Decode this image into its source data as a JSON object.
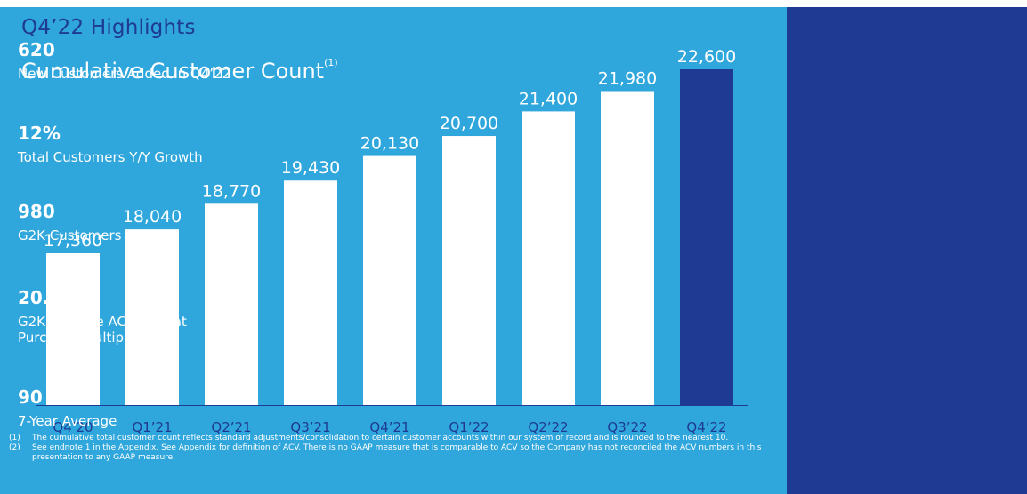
{
  "header": {
    "title": "Q4’22 Highlights",
    "chart_title": "Cumulative Customer Count",
    "chart_title_note": "(1)"
  },
  "colors": {
    "panel_bg": "#2fa6dc",
    "side_bg": "#1f3a93",
    "bar": "#ffffff",
    "highlight_bar": "#1f3a93",
    "title": "#1f3a93"
  },
  "chart_data": {
    "type": "bar",
    "title": "Cumulative Customer Count",
    "categories": [
      "Q4’20",
      "Q1’21",
      "Q2’21",
      "Q3’21",
      "Q4’21",
      "Q1’22",
      "Q2’22",
      "Q3’22",
      "Q4’22"
    ],
    "values": [
      17360,
      18040,
      18770,
      19430,
      20130,
      20700,
      21400,
      21980,
      22600
    ],
    "value_labels": [
      "17,360",
      "18,040",
      "18,770",
      "19,430",
      "20,130",
      "20,700",
      "21,400",
      "21,980",
      "22,600"
    ],
    "highlight_index": 8,
    "xlabel": "",
    "ylabel": "",
    "grid": false,
    "legend": "none"
  },
  "footnotes": [
    {
      "num": "(1)",
      "text": "The cumulative total customer count reflects standard adjustments/consolidation to certain customer accounts within our system of record and is rounded to the nearest 10."
    },
    {
      "num": "(2)",
      "text": "See endnote 1 in the Appendix. See Appendix for definition of ACV. There is no GAAP measure that is comparable to ACV so the Company has not reconciled the ACV numbers in this presentation to any GAAP measure."
    }
  ],
  "kpis": [
    {
      "value": "620",
      "note": "",
      "label": "New Customers Added in Q4’22"
    },
    {
      "value": "12%",
      "note": "",
      "label": "Total Customers Y/Y Growth"
    },
    {
      "value": "980",
      "note": "",
      "label": "G2K Customers"
    },
    {
      "value": "20.9x",
      "note": "(2)",
      "label": "G2K Lifetime ACV Repeat Purchase Multiple"
    },
    {
      "value": "90 NPS",
      "note": "",
      "label": "7-Year Average"
    }
  ]
}
